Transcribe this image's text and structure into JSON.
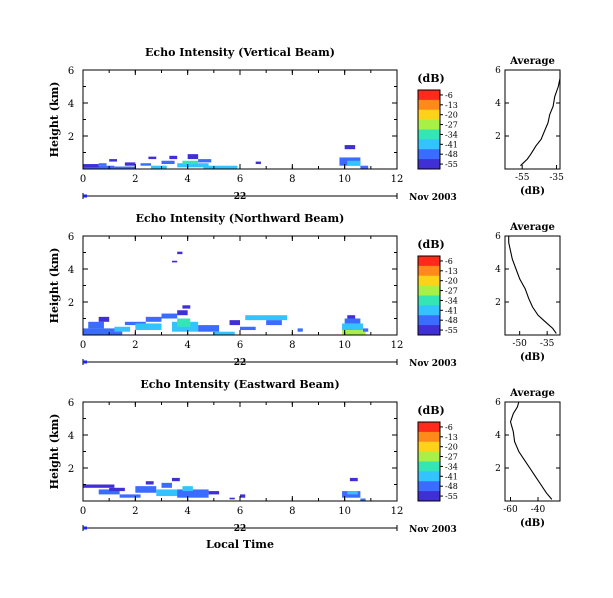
{
  "page": {
    "xlabel": "Local Time",
    "date_suffix": "Nov 2003",
    "day_label": "22"
  },
  "colorbar": {
    "title": "(dB)",
    "ticks": [
      "-6",
      "-13",
      "-20",
      "-27",
      "-34",
      "-41",
      "-48",
      "-55"
    ],
    "colors": [
      "#ff2a1a",
      "#ff8a1a",
      "#ffd21a",
      "#a8f046",
      "#33e6b4",
      "#33c4ff",
      "#3a6cff",
      "#3f2fd4"
    ]
  },
  "chart_data": [
    {
      "type": "heatmap",
      "title": "Echo Intensity (Vertical Beam)",
      "ylabel": "Height (km)",
      "xlim": [
        0,
        12
      ],
      "ylim": [
        0,
        6
      ],
      "x_ticks": [
        "0",
        "2",
        "4",
        "6",
        "8",
        "10",
        "12"
      ],
      "y_ticks": [
        "6",
        "4",
        "2"
      ],
      "cells": [
        [
          0,
          0,
          1.2,
          0.2,
          6
        ],
        [
          0,
          0.1,
          0.6,
          0.2,
          7
        ],
        [
          1.2,
          0,
          0.8,
          0.15,
          6
        ],
        [
          1.6,
          0.2,
          0.4,
          0.2,
          7
        ],
        [
          2.2,
          0.2,
          0.4,
          0.15,
          6
        ],
        [
          2.6,
          0,
          0.6,
          0.2,
          5
        ],
        [
          3.0,
          0.3,
          0.5,
          0.2,
          6
        ],
        [
          3.6,
          0.1,
          1.2,
          0.25,
          5
        ],
        [
          3.8,
          0.3,
          0.6,
          0.2,
          4
        ],
        [
          4.0,
          0.6,
          0.4,
          0.3,
          7
        ],
        [
          4.4,
          0.4,
          0.5,
          0.2,
          6
        ],
        [
          4.6,
          0,
          1.3,
          0.2,
          5
        ],
        [
          3.3,
          0.6,
          0.3,
          0.2,
          7
        ],
        [
          2.5,
          0.6,
          0.3,
          0.15,
          7
        ],
        [
          1.0,
          0.45,
          0.3,
          0.15,
          7
        ],
        [
          0.6,
          0.2,
          0.3,
          0.15,
          6
        ],
        [
          6.6,
          0.3,
          0.2,
          0.15,
          7
        ],
        [
          10.0,
          1.2,
          0.4,
          0.25,
          7
        ],
        [
          9.8,
          0.2,
          0.8,
          0.5,
          6
        ],
        [
          10.1,
          0.2,
          0.5,
          0.3,
          5
        ],
        [
          10.6,
          0,
          0.3,
          0.2,
          6
        ]
      ]
    },
    {
      "type": "heatmap",
      "title": "Echo Intensity (Northward Beam)",
      "ylabel": "Height (km)",
      "xlim": [
        0,
        12
      ],
      "ylim": [
        0,
        6
      ],
      "x_ticks": [
        "0",
        "2",
        "4",
        "6",
        "8",
        "10",
        "12"
      ],
      "y_ticks": [
        "6",
        "4",
        "2"
      ],
      "cells": [
        [
          0,
          0,
          1.5,
          0.4,
          6
        ],
        [
          0.2,
          0.4,
          0.6,
          0.4,
          6
        ],
        [
          0.6,
          0.8,
          0.4,
          0.3,
          7
        ],
        [
          1.2,
          0.2,
          0.6,
          0.3,
          5
        ],
        [
          1.6,
          0.6,
          0.8,
          0.2,
          6
        ],
        [
          2.0,
          0.3,
          1.0,
          0.4,
          5
        ],
        [
          2.4,
          0.8,
          0.6,
          0.3,
          6
        ],
        [
          3.0,
          1.0,
          0.6,
          0.3,
          6
        ],
        [
          3.4,
          0.2,
          1.0,
          0.6,
          5
        ],
        [
          3.6,
          0.5,
          0.5,
          0.5,
          4
        ],
        [
          3.6,
          1.2,
          0.4,
          0.3,
          7
        ],
        [
          3.8,
          1.6,
          0.3,
          0.2,
          7
        ],
        [
          4.4,
          0.2,
          0.8,
          0.4,
          6
        ],
        [
          5.0,
          0,
          0.8,
          0.2,
          5
        ],
        [
          5.6,
          0.6,
          0.4,
          0.3,
          7
        ],
        [
          6.0,
          0.3,
          0.6,
          0.2,
          6
        ],
        [
          6.2,
          0.9,
          1.6,
          0.3,
          5
        ],
        [
          7.0,
          0.6,
          0.6,
          0.3,
          6
        ],
        [
          8.2,
          0.2,
          0.2,
          0.2,
          6
        ],
        [
          3.4,
          4.4,
          0.2,
          0.1,
          7
        ],
        [
          3.6,
          4.9,
          0.2,
          0.15,
          7
        ],
        [
          9.9,
          0,
          0.9,
          0.3,
          3
        ],
        [
          9.9,
          0.3,
          0.8,
          0.4,
          5
        ],
        [
          10.0,
          0.7,
          0.6,
          0.3,
          6
        ],
        [
          10.1,
          1.0,
          0.3,
          0.2,
          7
        ],
        [
          10.7,
          0.2,
          0.2,
          0.2,
          6
        ]
      ]
    },
    {
      "type": "heatmap",
      "title": "Echo Intensity (Eastward Beam)",
      "ylabel": "Height (km)",
      "xlim": [
        0,
        12
      ],
      "ylim": [
        0,
        6
      ],
      "x_ticks": [
        "0",
        "2",
        "4",
        "6",
        "8",
        "10",
        "12"
      ],
      "y_ticks": [
        "6",
        "4",
        "2"
      ],
      "cells": [
        [
          0,
          0.8,
          1.2,
          0.2,
          7
        ],
        [
          0.6,
          0.4,
          0.8,
          0.3,
          6
        ],
        [
          1.0,
          0.6,
          0.6,
          0.2,
          7
        ],
        [
          1.4,
          0.2,
          0.8,
          0.2,
          6
        ],
        [
          2.0,
          0.5,
          0.8,
          0.4,
          6
        ],
        [
          2.4,
          1.0,
          0.3,
          0.2,
          7
        ],
        [
          2.8,
          0.3,
          1.0,
          0.4,
          5
        ],
        [
          3.0,
          0.8,
          0.4,
          0.3,
          6
        ],
        [
          3.6,
          0.2,
          1.2,
          0.5,
          6
        ],
        [
          3.8,
          0.6,
          0.4,
          0.3,
          5
        ],
        [
          4.8,
          0.4,
          0.4,
          0.2,
          7
        ],
        [
          5.6,
          0.1,
          0.2,
          0.1,
          7
        ],
        [
          6.0,
          0.2,
          0.2,
          0.2,
          7
        ],
        [
          3.4,
          1.2,
          0.3,
          0.2,
          7
        ],
        [
          9.9,
          0.2,
          0.7,
          0.4,
          6
        ],
        [
          10.1,
          0.4,
          0.4,
          0.2,
          5
        ],
        [
          10.2,
          1.2,
          0.3,
          0.2,
          7
        ],
        [
          10.6,
          0,
          0.2,
          0.15,
          6
        ]
      ]
    },
    {
      "type": "line",
      "title": "Average",
      "xlabel": "(dB)",
      "x_ticks": [
        "-55",
        "-35"
      ],
      "y_ticks": [
        "6",
        "4",
        "2"
      ],
      "xlim": [
        -65,
        -33
      ],
      "ylim": [
        0,
        6
      ],
      "series": [
        {
          "x": [
            -56,
            -52,
            -50,
            -47,
            -44,
            -42,
            -40,
            -39,
            -37,
            -36,
            -34,
            -33,
            -33
          ],
          "y": [
            0.2,
            0.6,
            0.9,
            1.4,
            1.8,
            2.3,
            2.8,
            3.3,
            3.8,
            4.4,
            5.0,
            5.5,
            5.9
          ]
        }
      ]
    },
    {
      "type": "line",
      "title": "Average",
      "xlabel": "(dB)",
      "x_ticks": [
        "-50",
        "-35"
      ],
      "y_ticks": [
        "6",
        "4",
        "2"
      ],
      "xlim": [
        -58,
        -28
      ],
      "ylim": [
        0,
        6
      ],
      "series": [
        {
          "x": [
            -30,
            -32,
            -36,
            -40,
            -43,
            -45,
            -47,
            -50,
            -52,
            -54,
            -55,
            -56,
            -56
          ],
          "y": [
            0.1,
            0.4,
            0.8,
            1.2,
            1.7,
            2.2,
            2.8,
            3.4,
            4.0,
            4.6,
            5.1,
            5.6,
            6.0
          ]
        }
      ]
    },
    {
      "type": "line",
      "title": "Average",
      "xlabel": "(dB)",
      "x_ticks": [
        "-60",
        "-40"
      ],
      "y_ticks": [
        "6",
        "4",
        "2"
      ],
      "xlim": [
        -64,
        -24
      ],
      "ylim": [
        0,
        6
      ],
      "series": [
        {
          "x": [
            -30,
            -34,
            -38,
            -42,
            -46,
            -50,
            -54,
            -57,
            -58,
            -60,
            -58,
            -55,
            -54
          ],
          "y": [
            0.1,
            0.5,
            1.0,
            1.5,
            2.0,
            2.5,
            3.0,
            3.6,
            4.2,
            4.8,
            5.3,
            5.7,
            6.0
          ]
        }
      ]
    }
  ]
}
